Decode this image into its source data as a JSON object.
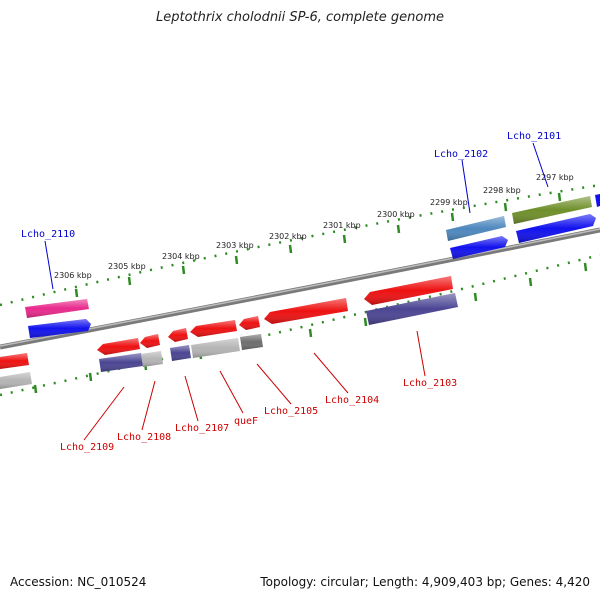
{
  "title": "Leptothrix cholodnii SP-6, complete genome",
  "accession": "Accession: NC_010524",
  "stats": "Topology: circular; Length: 4,909,403 bp; Genes: 4,420",
  "colors": {
    "backbone": "#888888",
    "tick": "#2e8b22",
    "label_top": "#0000cc",
    "label_bottom": "#cc0000",
    "red": "#ee1111",
    "blue": "#1111ee",
    "navy": "#4b4593",
    "gray": "#b4b4b4",
    "darkgray": "#6e6e6e",
    "steel": "#4d87bd",
    "olive": "#6f8f2a",
    "magenta": "#e8298c"
  },
  "kbp_labels": [
    "2306 kbp",
    "2305 kbp",
    "2304 kbp",
    "2303 kbp",
    "2302 kbp",
    "2301 kbp",
    "2300 kbp",
    "2299 kbp",
    "2298 kbp",
    "2297 kbp"
  ],
  "gene_labels": {
    "top": [
      "Lcho_2110",
      "Lcho_2102",
      "Lcho_2101"
    ],
    "bottom": [
      "Lcho_2109",
      "Lcho_2108",
      "Lcho_2107",
      "queF",
      "Lcho_2105",
      "Lcho_2104",
      "Lcho_2103"
    ]
  }
}
